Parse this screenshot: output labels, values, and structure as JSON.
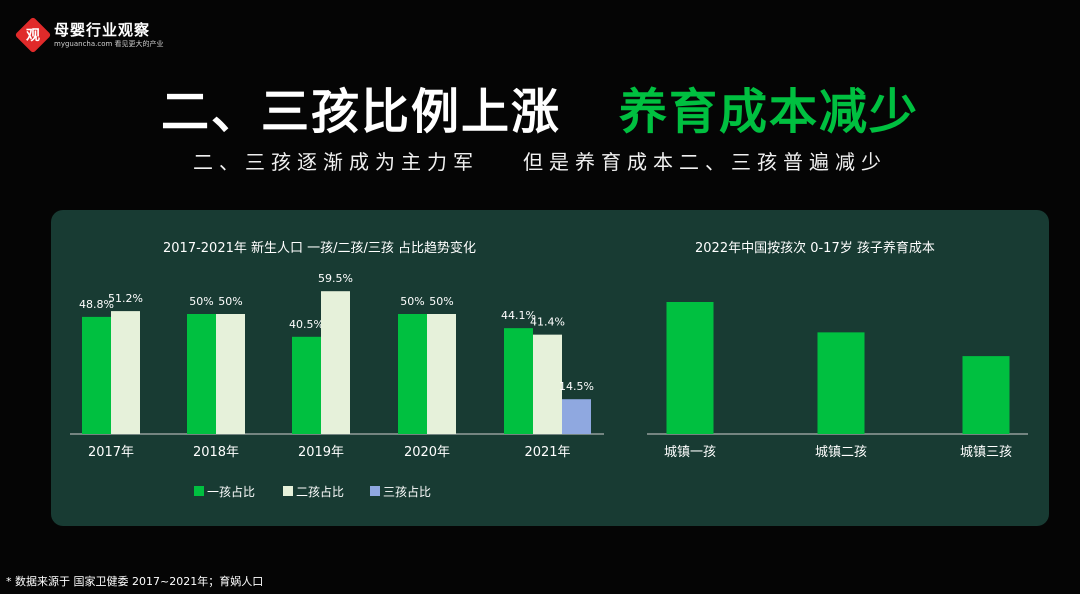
{
  "logo": {
    "mark": "观",
    "name": "母婴行业观察",
    "sub": "myguancha.com 看见更大的产业"
  },
  "header": {
    "title_left": "二、三孩比例上涨",
    "title_right": "养育成本减少",
    "subtitle_left": "二、三孩逐渐成为主力军",
    "subtitle_right": "但是养育成本二、三孩普遍减少"
  },
  "colors": {
    "green": "#00c040",
    "light": "#e6f1da",
    "blue": "#8fa8e0",
    "panel": "#183b33",
    "title_green": "#00c040"
  },
  "chart_data": [
    {
      "type": "bar",
      "title": "2017-2021年 新生人口 一孩/二孩/三孩 占比趋势变化",
      "categories": [
        "2017年",
        "2018年",
        "2019年",
        "2020年",
        "2021年"
      ],
      "series": [
        {
          "name": "一孩占比",
          "values": [
            48.8,
            50,
            40.5,
            50,
            44.1
          ],
          "labels": [
            "48.8%",
            "50%",
            "40.5%",
            "50%",
            "44.1%"
          ]
        },
        {
          "name": "二孩占比",
          "values": [
            51.2,
            50,
            59.5,
            50,
            41.4
          ],
          "labels": [
            "51.2%",
            "50%",
            "59.5%",
            "50%",
            "41.4%"
          ]
        },
        {
          "name": "三孩占比",
          "values": [
            null,
            null,
            null,
            null,
            14.5
          ],
          "labels": [
            "",
            "",
            "",
            "",
            "14.5%"
          ]
        }
      ],
      "ylim": [
        0,
        60
      ],
      "legend": "bottom"
    },
    {
      "type": "bar",
      "title": "2022年中国按孩次 0-17岁 孩子养育成本",
      "categories": [
        "城镇一孩",
        "城镇二孩",
        "城镇三孩"
      ],
      "values": [
        100,
        77,
        59
      ],
      "value_note": "relative heights only; no values printed"
    }
  ],
  "footnote": "* 数据来源于  国家卫健委 2017~2021年；育娲人口"
}
